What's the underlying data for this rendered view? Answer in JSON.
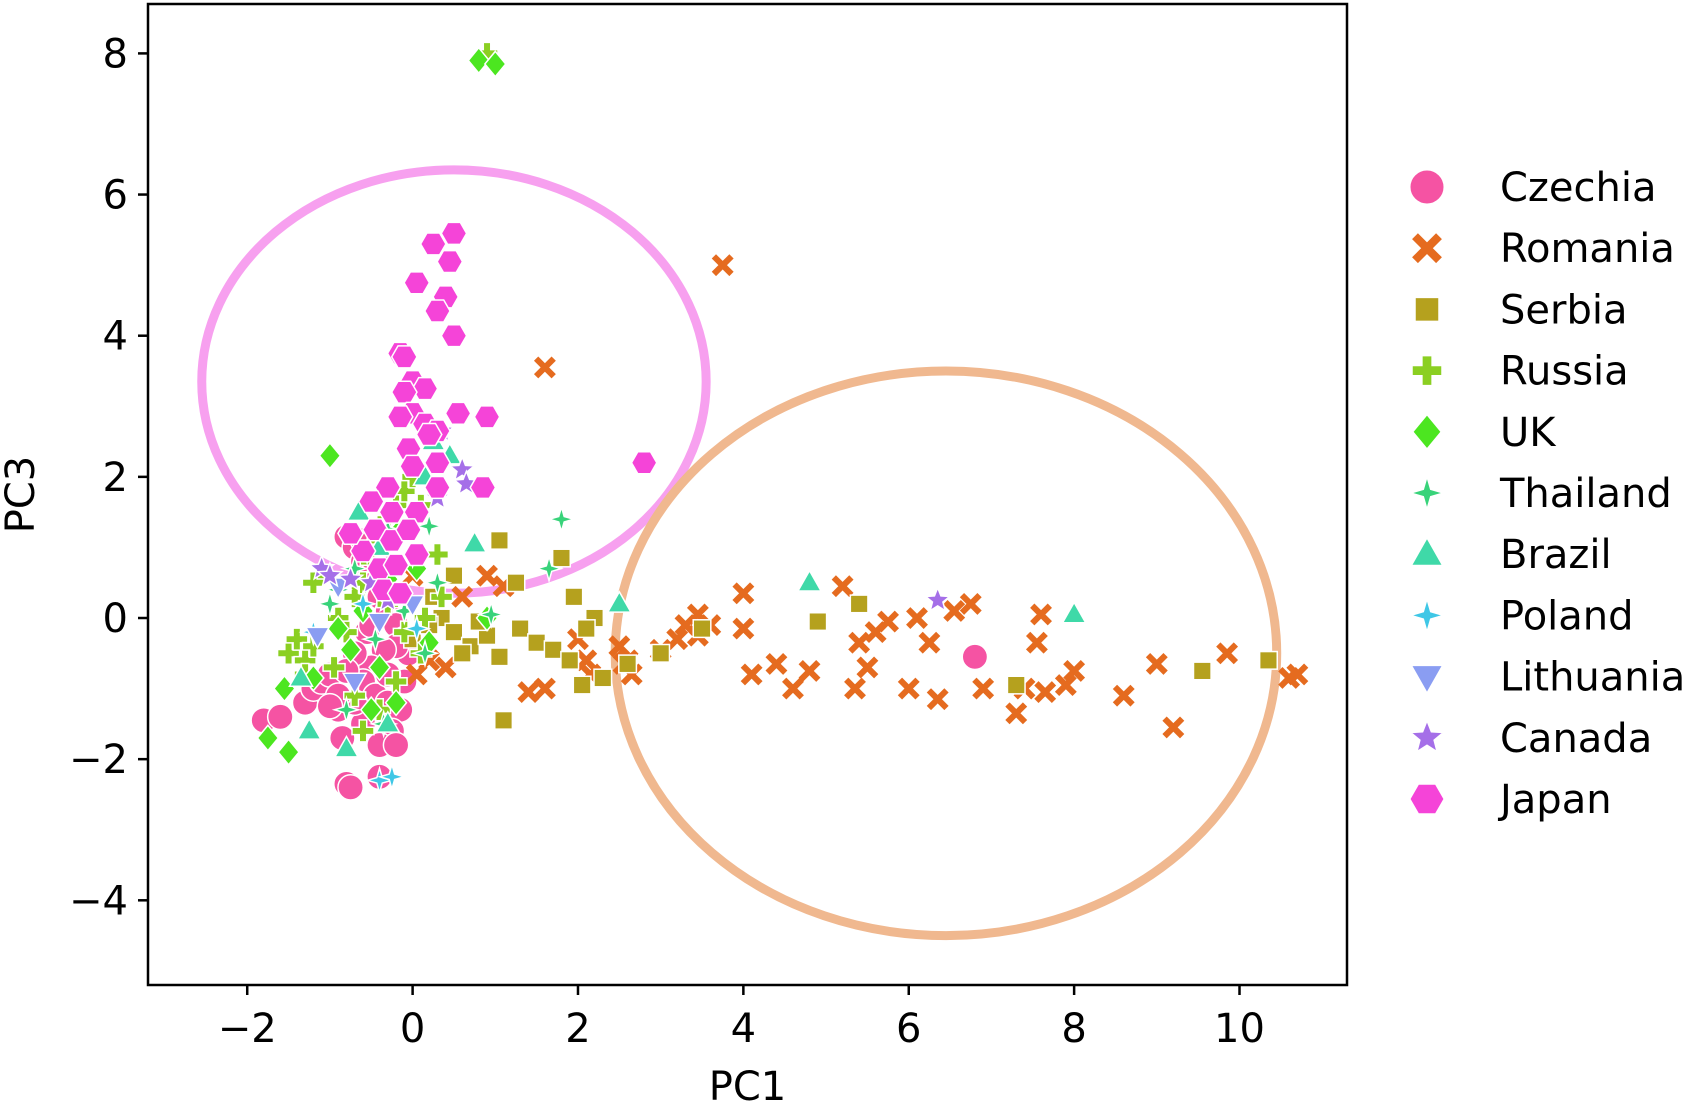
{
  "chart_data": {
    "type": "scatter",
    "xlabel": "PC1",
    "ylabel": "PC3",
    "xlim": [
      -3.2,
      11.3
    ],
    "ylim": [
      -5.2,
      8.7
    ],
    "xticks": [
      -2,
      0,
      2,
      4,
      6,
      8,
      10
    ],
    "yticks": [
      -4,
      -2,
      0,
      2,
      4,
      6,
      8
    ],
    "xtick_labels": [
      "−2",
      "0",
      "2",
      "4",
      "6",
      "8",
      "10"
    ],
    "ytick_labels": [
      "−4",
      "−2",
      "0",
      "2",
      "4",
      "6",
      "8"
    ],
    "grid": false,
    "legend_position": "right-outside",
    "ellipses": [
      {
        "cx": 0.5,
        "cy": 3.35,
        "rx": 3.05,
        "ry": 3.0,
        "color": "#f7a0ef"
      },
      {
        "cx": 6.45,
        "cy": -0.5,
        "rx": 4.0,
        "ry": 4.0,
        "color": "#f0b88f"
      }
    ],
    "series": [
      {
        "name": "Czechia",
        "marker": "circle",
        "color": "#f553a3",
        "points": [
          [
            -1.8,
            -1.45
          ],
          [
            -1.6,
            -1.4
          ],
          [
            -1.3,
            -1.2
          ],
          [
            -1.2,
            -1.0
          ],
          [
            -1.1,
            -0.9
          ],
          [
            -1.0,
            -0.8
          ],
          [
            -0.9,
            -1.3
          ],
          [
            -0.85,
            -1.7
          ],
          [
            -0.8,
            -2.35
          ],
          [
            -0.75,
            -2.4
          ],
          [
            -0.8,
            1.15
          ],
          [
            -0.7,
            1.0
          ],
          [
            -0.6,
            0.8
          ],
          [
            -0.5,
            0.6
          ],
          [
            -0.45,
            0.5
          ],
          [
            -0.4,
            0.3
          ],
          [
            -0.3,
            0.1
          ],
          [
            -0.2,
            -0.1
          ],
          [
            -0.1,
            -0.3
          ],
          [
            -0.05,
            -0.5
          ],
          [
            -0.2,
            -0.4
          ],
          [
            -0.35,
            -0.45
          ],
          [
            -0.5,
            -0.7
          ],
          [
            -0.6,
            -0.9
          ],
          [
            -0.45,
            -1.1
          ],
          [
            -0.3,
            -1.2
          ],
          [
            -0.15,
            -1.3
          ],
          [
            -0.25,
            -1.6
          ],
          [
            -0.4,
            -1.8
          ],
          [
            -0.2,
            -1.8
          ],
          [
            -0.6,
            -1.5
          ],
          [
            -0.7,
            -1.2
          ],
          [
            -0.9,
            -1.1
          ],
          [
            -1.0,
            -1.25
          ],
          [
            -0.55,
            -0.2
          ],
          [
            -0.7,
            -0.5
          ],
          [
            -0.8,
            -0.75
          ],
          [
            -0.3,
            0.7
          ],
          [
            -0.6,
            1.1
          ],
          [
            -0.4,
            -2.25
          ],
          [
            -0.1,
            -0.9
          ],
          [
            -0.3,
            -0.8
          ],
          [
            -0.5,
            -0.1
          ],
          [
            6.8,
            -0.55
          ]
        ]
      },
      {
        "name": "Romania",
        "marker": "x",
        "color": "#e56b1f",
        "points": [
          [
            3.75,
            5.0
          ],
          [
            1.6,
            3.55
          ],
          [
            0.0,
            0.6
          ],
          [
            0.9,
            0.6
          ],
          [
            1.1,
            0.45
          ],
          [
            0.6,
            0.3
          ],
          [
            0.2,
            -0.6
          ],
          [
            0.4,
            -0.7
          ],
          [
            0.05,
            -0.8
          ],
          [
            1.4,
            -1.05
          ],
          [
            1.6,
            -1.0
          ],
          [
            2.0,
            -0.3
          ],
          [
            2.1,
            -0.6
          ],
          [
            2.15,
            -0.8
          ],
          [
            2.5,
            -0.4
          ],
          [
            2.6,
            -0.6
          ],
          [
            2.65,
            -0.8
          ],
          [
            3.0,
            -0.45
          ],
          [
            3.2,
            -0.3
          ],
          [
            3.3,
            -0.1
          ],
          [
            3.45,
            0.05
          ],
          [
            3.6,
            -0.1
          ],
          [
            4.0,
            0.35
          ],
          [
            4.0,
            -0.15
          ],
          [
            4.1,
            -0.8
          ],
          [
            4.4,
            -0.65
          ],
          [
            4.6,
            -1.0
          ],
          [
            4.8,
            -0.75
          ],
          [
            5.2,
            0.45
          ],
          [
            5.35,
            -1.0
          ],
          [
            5.4,
            -0.35
          ],
          [
            5.5,
            -0.7
          ],
          [
            5.6,
            -0.2
          ],
          [
            5.75,
            -0.05
          ],
          [
            6.0,
            -1.0
          ],
          [
            6.1,
            0.0
          ],
          [
            6.25,
            -0.35
          ],
          [
            6.35,
            -1.15
          ],
          [
            6.55,
            0.1
          ],
          [
            6.75,
            0.2
          ],
          [
            6.9,
            -1.0
          ],
          [
            7.3,
            -1.35
          ],
          [
            7.4,
            -1.0
          ],
          [
            7.55,
            -0.35
          ],
          [
            7.6,
            0.05
          ],
          [
            7.65,
            -1.05
          ],
          [
            7.9,
            -0.95
          ],
          [
            8.0,
            -0.75
          ],
          [
            8.6,
            -1.1
          ],
          [
            9.0,
            -0.65
          ],
          [
            9.2,
            -1.55
          ],
          [
            9.85,
            -0.5
          ],
          [
            10.6,
            -0.85
          ],
          [
            10.7,
            -0.8
          ],
          [
            3.45,
            -0.25
          ],
          [
            2.55,
            -0.65
          ]
        ]
      },
      {
        "name": "Serbia",
        "marker": "square",
        "color": "#b5a11e",
        "points": [
          [
            1.05,
            1.1
          ],
          [
            1.8,
            0.85
          ],
          [
            1.25,
            0.5
          ],
          [
            0.5,
            0.6
          ],
          [
            0.25,
            0.3
          ],
          [
            0.35,
            0.0
          ],
          [
            0.5,
            -0.2
          ],
          [
            0.7,
            -0.4
          ],
          [
            0.6,
            -0.5
          ],
          [
            1.05,
            -0.55
          ],
          [
            0.9,
            -0.25
          ],
          [
            1.3,
            -0.15
          ],
          [
            1.5,
            -0.35
          ],
          [
            1.7,
            -0.45
          ],
          [
            1.95,
            0.3
          ],
          [
            2.2,
            0.0
          ],
          [
            2.1,
            -0.15
          ],
          [
            1.9,
            -0.6
          ],
          [
            2.3,
            -0.85
          ],
          [
            2.05,
            -0.95
          ],
          [
            1.1,
            -1.45
          ],
          [
            2.6,
            -0.65
          ],
          [
            3.0,
            -0.5
          ],
          [
            3.5,
            -0.15
          ],
          [
            4.9,
            -0.05
          ],
          [
            5.4,
            0.2
          ],
          [
            7.3,
            -0.95
          ],
          [
            9.55,
            -0.75
          ],
          [
            10.35,
            -0.6
          ],
          [
            0.8,
            -0.05
          ],
          [
            0.0,
            -0.3
          ],
          [
            0.2,
            -0.1
          ]
        ]
      },
      {
        "name": "Russia",
        "marker": "plus",
        "color": "#8bcf22",
        "points": [
          [
            0.9,
            8.0
          ],
          [
            -1.5,
            -0.5
          ],
          [
            -1.4,
            -0.3
          ],
          [
            -1.3,
            -0.6
          ],
          [
            -1.2,
            -0.4
          ],
          [
            -1.3,
            -0.8
          ],
          [
            -1.1,
            0.6
          ],
          [
            -1.2,
            0.5
          ],
          [
            -0.9,
            0.0
          ],
          [
            -0.8,
            -0.2
          ],
          [
            -0.7,
            0.3
          ],
          [
            -0.6,
            0.5
          ],
          [
            -0.5,
            0.8
          ],
          [
            -0.4,
            1.1
          ],
          [
            -0.3,
            1.4
          ],
          [
            -0.2,
            1.6
          ],
          [
            -0.1,
            1.8
          ],
          [
            0.0,
            2.0
          ],
          [
            0.1,
            1.6
          ],
          [
            0.3,
            0.9
          ],
          [
            0.15,
            0.0
          ],
          [
            0.1,
            -0.5
          ],
          [
            -0.2,
            -0.9
          ],
          [
            -0.4,
            -1.3
          ],
          [
            -0.6,
            -1.6
          ],
          [
            -0.7,
            -1.1
          ],
          [
            -0.95,
            -0.7
          ],
          [
            0.35,
            0.3
          ],
          [
            -0.3,
            0.2
          ],
          [
            -0.1,
            -0.2
          ]
        ]
      },
      {
        "name": "UK",
        "marker": "diamond",
        "color": "#4ce620",
        "points": [
          [
            0.8,
            7.9
          ],
          [
            1.0,
            7.85
          ],
          [
            -1.0,
            2.3
          ],
          [
            -1.5,
            -1.9
          ],
          [
            -1.75,
            -1.7
          ],
          [
            -1.55,
            -1.0
          ],
          [
            -1.2,
            -0.85
          ],
          [
            -0.5,
            -1.3
          ],
          [
            -0.2,
            -1.2
          ],
          [
            -0.75,
            -0.45
          ],
          [
            -0.3,
            0.55
          ],
          [
            -0.15,
            1.25
          ],
          [
            0.05,
            0.7
          ],
          [
            0.2,
            -0.35
          ],
          [
            0.9,
            0.0
          ],
          [
            -0.6,
            0.1
          ],
          [
            -0.9,
            -0.15
          ],
          [
            -0.4,
            -0.7
          ]
        ]
      },
      {
        "name": "Thailand",
        "marker": "star4",
        "color": "#38d37a",
        "points": [
          [
            1.8,
            1.4
          ],
          [
            1.65,
            0.7
          ],
          [
            0.95,
            0.05
          ],
          [
            0.3,
            0.5
          ],
          [
            -0.3,
            1.25
          ],
          [
            -0.55,
            0.95
          ],
          [
            -0.7,
            0.7
          ],
          [
            -0.9,
            0.4
          ],
          [
            -1.0,
            0.2
          ],
          [
            -0.1,
            0.1
          ],
          [
            0.15,
            -0.5
          ],
          [
            -0.45,
            -0.3
          ],
          [
            -0.8,
            -1.3
          ],
          [
            -0.35,
            -1.5
          ],
          [
            0.0,
            0.9
          ],
          [
            0.2,
            1.3
          ]
        ]
      },
      {
        "name": "Brazil",
        "marker": "triangle",
        "color": "#3fd9a8",
        "points": [
          [
            0.75,
            1.05
          ],
          [
            2.5,
            0.2
          ],
          [
            4.8,
            0.5
          ],
          [
            8.0,
            0.05
          ],
          [
            -1.25,
            -1.6
          ],
          [
            -0.8,
            -1.85
          ],
          [
            -0.3,
            -1.5
          ],
          [
            -1.35,
            -0.85
          ],
          [
            -0.65,
            1.5
          ],
          [
            0.15,
            2.0
          ],
          [
            0.25,
            2.5
          ],
          [
            0.45,
            2.3
          ],
          [
            -0.4,
            1.0
          ],
          [
            -0.15,
            0.3
          ]
        ]
      },
      {
        "name": "Poland",
        "marker": "star4",
        "color": "#3fc7e6",
        "points": [
          [
            -0.4,
            -2.3
          ],
          [
            -0.25,
            -2.25
          ],
          [
            -1.2,
            -0.2
          ],
          [
            -0.6,
            0.2
          ],
          [
            0.05,
            -0.15
          ]
        ]
      },
      {
        "name": "Lithuania",
        "marker": "triangle-down",
        "color": "#8a9df2",
        "points": [
          [
            -1.15,
            -0.25
          ],
          [
            -0.9,
            0.45
          ],
          [
            -0.4,
            -0.05
          ],
          [
            0.0,
            0.2
          ],
          [
            -0.7,
            -0.9
          ]
        ]
      },
      {
        "name": "Canada",
        "marker": "star",
        "color": "#a56fe8",
        "points": [
          [
            0.35,
            2.65
          ],
          [
            0.6,
            2.1
          ],
          [
            0.65,
            1.9
          ],
          [
            0.3,
            1.7
          ],
          [
            -1.1,
            0.7
          ],
          [
            -1.0,
            0.6
          ],
          [
            -0.75,
            0.55
          ],
          [
            -0.5,
            0.5
          ],
          [
            6.35,
            0.25
          ],
          [
            -0.3,
            0.25
          ]
        ]
      },
      {
        "name": "Japan",
        "marker": "hexagon",
        "color": "#f544d8",
        "points": [
          [
            0.25,
            5.3
          ],
          [
            0.5,
            5.45
          ],
          [
            0.45,
            5.05
          ],
          [
            0.05,
            4.75
          ],
          [
            0.4,
            4.55
          ],
          [
            0.3,
            4.35
          ],
          [
            0.5,
            4.0
          ],
          [
            -0.15,
            3.75
          ],
          [
            -0.1,
            3.7
          ],
          [
            0.0,
            3.35
          ],
          [
            0.15,
            3.25
          ],
          [
            -0.1,
            3.2
          ],
          [
            0.0,
            2.9
          ],
          [
            0.15,
            2.75
          ],
          [
            -0.15,
            2.85
          ],
          [
            0.55,
            2.9
          ],
          [
            0.9,
            2.85
          ],
          [
            0.3,
            2.65
          ],
          [
            0.2,
            2.6
          ],
          [
            -0.05,
            2.4
          ],
          [
            0.3,
            2.2
          ],
          [
            0.0,
            2.15
          ],
          [
            0.85,
            1.85
          ],
          [
            -0.3,
            1.85
          ],
          [
            -0.5,
            1.65
          ],
          [
            -0.25,
            1.5
          ],
          [
            0.05,
            1.5
          ],
          [
            -0.45,
            1.25
          ],
          [
            -0.25,
            1.1
          ],
          [
            -0.6,
            0.95
          ],
          [
            -0.4,
            0.7
          ],
          [
            -0.2,
            0.75
          ],
          [
            0.05,
            0.9
          ],
          [
            -0.05,
            1.25
          ],
          [
            -0.35,
            0.4
          ],
          [
            2.8,
            2.2
          ],
          [
            0.3,
            1.85
          ],
          [
            -0.75,
            1.2
          ],
          [
            -0.15,
            0.35
          ]
        ]
      }
    ]
  }
}
